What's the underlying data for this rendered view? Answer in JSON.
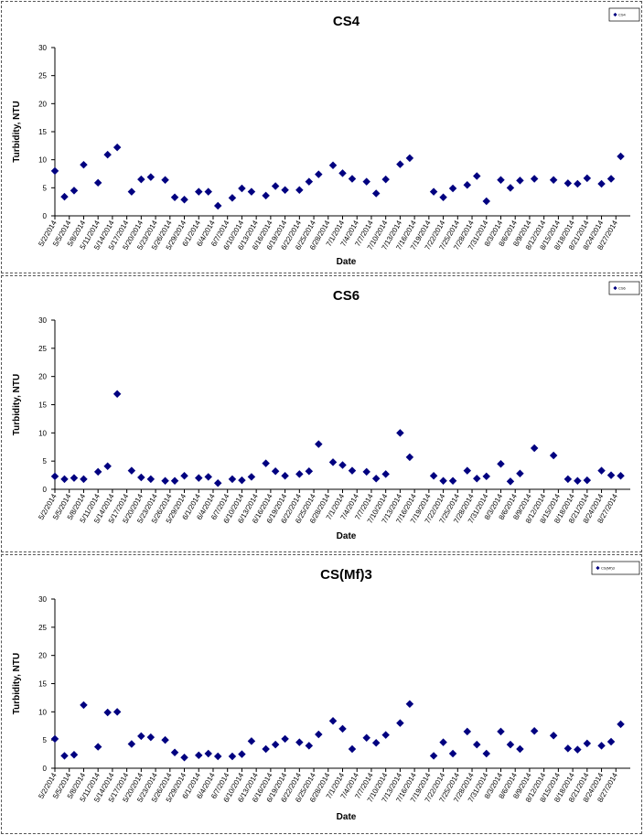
{
  "dates": [
    "5/2/2014",
    "5/5/2014",
    "5/8/2014",
    "5/11/2014",
    "5/14/2014",
    "5/17/2014",
    "5/20/2014",
    "5/23/2014",
    "5/26/2014",
    "5/29/2014",
    "6/1/2014",
    "6/4/2014",
    "6/7/2014",
    "6/10/2014",
    "6/13/2014",
    "6/16/2014",
    "6/19/2014",
    "6/22/2014",
    "6/25/2014",
    "6/28/2014",
    "7/1/2014",
    "7/4/2014",
    "7/7/2014",
    "7/10/2014",
    "7/13/2014",
    "7/16/2014",
    "7/19/2014",
    "7/22/2014",
    "7/25/2014",
    "7/28/2014",
    "7/31/2014",
    "8/3/2014",
    "8/6/2014",
    "8/9/2014",
    "8/12/2014",
    "8/15/2014",
    "8/18/2014",
    "8/21/2014",
    "8/24/2014",
    "8/27/2014"
  ],
  "chart_data": [
    {
      "type": "scatter",
      "title": "CS4",
      "xlabel": "Date",
      "ylabel": "Turbidity, NTU",
      "ylim": [
        0,
        30
      ],
      "yticks": [
        0,
        5,
        10,
        15,
        20,
        25,
        30
      ],
      "xlim": [
        "5/2/2014",
        "8/30/2014"
      ],
      "legend": "top-right",
      "series": [
        {
          "name": "CS4",
          "color": "#000080",
          "points": [
            [
              "5/2/2014",
              8.0
            ],
            [
              "5/4/2014",
              3.4
            ],
            [
              "5/6/2014",
              4.5
            ],
            [
              "5/8/2014",
              9.1
            ],
            [
              "5/11/2014",
              5.9
            ],
            [
              "5/13/2014",
              10.9
            ],
            [
              "5/15/2014",
              12.2
            ],
            [
              "5/18/2014",
              4.3
            ],
            [
              "5/20/2014",
              6.5
            ],
            [
              "5/22/2014",
              6.9
            ],
            [
              "5/25/2014",
              6.4
            ],
            [
              "5/27/2014",
              3.3
            ],
            [
              "5/29/2014",
              2.9
            ],
            [
              "6/1/2014",
              4.3
            ],
            [
              "6/3/2014",
              4.3
            ],
            [
              "6/5/2014",
              1.8
            ],
            [
              "6/8/2014",
              3.2
            ],
            [
              "6/10/2014",
              4.9
            ],
            [
              "6/12/2014",
              4.3
            ],
            [
              "6/15/2014",
              3.6
            ],
            [
              "6/17/2014",
              5.3
            ],
            [
              "6/19/2014",
              4.6
            ],
            [
              "6/22/2014",
              4.6
            ],
            [
              "6/24/2014",
              6.1
            ],
            [
              "6/26/2014",
              7.4
            ],
            [
              "6/29/2014",
              9.0
            ],
            [
              "7/1/2014",
              7.6
            ],
            [
              "7/3/2014",
              6.6
            ],
            [
              "7/6/2014",
              6.1
            ],
            [
              "7/8/2014",
              4.0
            ],
            [
              "7/10/2014",
              6.5
            ],
            [
              "7/13/2014",
              9.2
            ],
            [
              "7/15/2014",
              10.3
            ],
            [
              "7/20/2014",
              4.3
            ],
            [
              "7/22/2014",
              3.3
            ],
            [
              "7/24/2014",
              4.9
            ],
            [
              "7/27/2014",
              5.5
            ],
            [
              "7/29/2014",
              7.1
            ],
            [
              "7/31/2014",
              2.6
            ],
            [
              "8/3/2014",
              6.4
            ],
            [
              "8/5/2014",
              5.0
            ],
            [
              "8/7/2014",
              6.3
            ],
            [
              "8/10/2014",
              6.6
            ],
            [
              "8/14/2014",
              6.4
            ],
            [
              "8/17/2014",
              5.8
            ],
            [
              "8/19/2014",
              5.7
            ],
            [
              "8/21/2014",
              6.7
            ],
            [
              "8/24/2014",
              5.7
            ],
            [
              "8/26/2014",
              6.6
            ],
            [
              "8/28/2014",
              10.6
            ]
          ]
        }
      ]
    },
    {
      "type": "scatter",
      "title": "CS6",
      "xlabel": "Date",
      "ylabel": "Turbidity, NTU",
      "ylim": [
        0,
        30
      ],
      "yticks": [
        0,
        5,
        10,
        15,
        20,
        25,
        30
      ],
      "xlim": [
        "5/2/2014",
        "8/30/2014"
      ],
      "legend": "top-right",
      "series": [
        {
          "name": "CS6",
          "color": "#000080",
          "points": [
            [
              "5/2/2014",
              2.3
            ],
            [
              "5/4/2014",
              1.8
            ],
            [
              "5/6/2014",
              2.0
            ],
            [
              "5/8/2014",
              1.8
            ],
            [
              "5/11/2014",
              3.1
            ],
            [
              "5/13/2014",
              4.1
            ],
            [
              "5/15/2014",
              16.9
            ],
            [
              "5/18/2014",
              3.3
            ],
            [
              "5/20/2014",
              2.1
            ],
            [
              "5/22/2014",
              1.8
            ],
            [
              "5/25/2014",
              1.5
            ],
            [
              "5/27/2014",
              1.5
            ],
            [
              "5/29/2014",
              2.4
            ],
            [
              "6/1/2014",
              2.0
            ],
            [
              "6/3/2014",
              2.2
            ],
            [
              "6/5/2014",
              1.1
            ],
            [
              "6/8/2014",
              1.8
            ],
            [
              "6/10/2014",
              1.6
            ],
            [
              "6/12/2014",
              2.2
            ],
            [
              "6/15/2014",
              4.6
            ],
            [
              "6/17/2014",
              3.2
            ],
            [
              "6/19/2014",
              2.4
            ],
            [
              "6/22/2014",
              2.7
            ],
            [
              "6/24/2014",
              3.2
            ],
            [
              "6/26/2014",
              8.0
            ],
            [
              "6/29/2014",
              4.8
            ],
            [
              "7/1/2014",
              4.3
            ],
            [
              "7/3/2014",
              3.3
            ],
            [
              "7/6/2014",
              3.1
            ],
            [
              "7/8/2014",
              1.9
            ],
            [
              "7/10/2014",
              2.7
            ],
            [
              "7/13/2014",
              10.0
            ],
            [
              "7/15/2014",
              5.7
            ],
            [
              "7/20/2014",
              2.4
            ],
            [
              "7/22/2014",
              1.5
            ],
            [
              "7/24/2014",
              1.5
            ],
            [
              "7/27/2014",
              3.3
            ],
            [
              "7/29/2014",
              1.9
            ],
            [
              "7/31/2014",
              2.3
            ],
            [
              "8/3/2014",
              4.5
            ],
            [
              "8/5/2014",
              1.4
            ],
            [
              "8/7/2014",
              2.8
            ],
            [
              "8/10/2014",
              7.3
            ],
            [
              "8/14/2014",
              6.0
            ],
            [
              "8/17/2014",
              1.8
            ],
            [
              "8/19/2014",
              1.5
            ],
            [
              "8/21/2014",
              1.6
            ],
            [
              "8/24/2014",
              3.3
            ],
            [
              "8/26/2014",
              2.5
            ],
            [
              "8/28/2014",
              2.4
            ]
          ]
        }
      ]
    },
    {
      "type": "scatter",
      "title": "CS(Mf)3",
      "xlabel": "Date",
      "ylabel": "Turbidity, NTU",
      "ylim": [
        0,
        30
      ],
      "yticks": [
        0,
        5,
        10,
        15,
        20,
        25,
        30
      ],
      "xlim": [
        "5/2/2014",
        "8/30/2014"
      ],
      "legend": "top-right",
      "series": [
        {
          "name": "CS(Mf)3",
          "color": "#000080",
          "points": [
            [
              "5/2/2014",
              5.2
            ],
            [
              "5/4/2014",
              2.2
            ],
            [
              "5/6/2014",
              2.4
            ],
            [
              "5/8/2014",
              11.2
            ],
            [
              "5/11/2014",
              3.8
            ],
            [
              "5/13/2014",
              9.9
            ],
            [
              "5/15/2014",
              10.0
            ],
            [
              "5/18/2014",
              4.3
            ],
            [
              "5/20/2014",
              5.7
            ],
            [
              "5/22/2014",
              5.5
            ],
            [
              "5/25/2014",
              5.0
            ],
            [
              "5/27/2014",
              2.8
            ],
            [
              "5/29/2014",
              1.9
            ],
            [
              "6/1/2014",
              2.3
            ],
            [
              "6/3/2014",
              2.6
            ],
            [
              "6/5/2014",
              2.1
            ],
            [
              "6/8/2014",
              2.1
            ],
            [
              "6/10/2014",
              2.5
            ],
            [
              "6/12/2014",
              4.8
            ],
            [
              "6/15/2014",
              3.4
            ],
            [
              "6/17/2014",
              4.2
            ],
            [
              "6/19/2014",
              5.2
            ],
            [
              "6/22/2014",
              4.6
            ],
            [
              "6/24/2014",
              4.0
            ],
            [
              "6/26/2014",
              6.0
            ],
            [
              "6/29/2014",
              8.4
            ],
            [
              "7/1/2014",
              7.0
            ],
            [
              "7/3/2014",
              3.4
            ],
            [
              "7/6/2014",
              5.4
            ],
            [
              "7/8/2014",
              4.5
            ],
            [
              "7/10/2014",
              5.9
            ],
            [
              "7/13/2014",
              8.0
            ],
            [
              "7/15/2014",
              11.4
            ],
            [
              "7/20/2014",
              2.2
            ],
            [
              "7/22/2014",
              4.6
            ],
            [
              "7/24/2014",
              2.6
            ],
            [
              "7/27/2014",
              6.5
            ],
            [
              "7/29/2014",
              4.2
            ],
            [
              "7/31/2014",
              2.6
            ],
            [
              "8/3/2014",
              6.5
            ],
            [
              "8/5/2014",
              4.2
            ],
            [
              "8/7/2014",
              3.4
            ],
            [
              "8/10/2014",
              6.6
            ],
            [
              "8/14/2014",
              5.8
            ],
            [
              "8/17/2014",
              3.5
            ],
            [
              "8/19/2014",
              3.3
            ],
            [
              "8/21/2014",
              4.4
            ],
            [
              "8/24/2014",
              4.0
            ],
            [
              "8/26/2014",
              4.7
            ],
            [
              "8/28/2014",
              7.8
            ]
          ]
        }
      ]
    }
  ]
}
